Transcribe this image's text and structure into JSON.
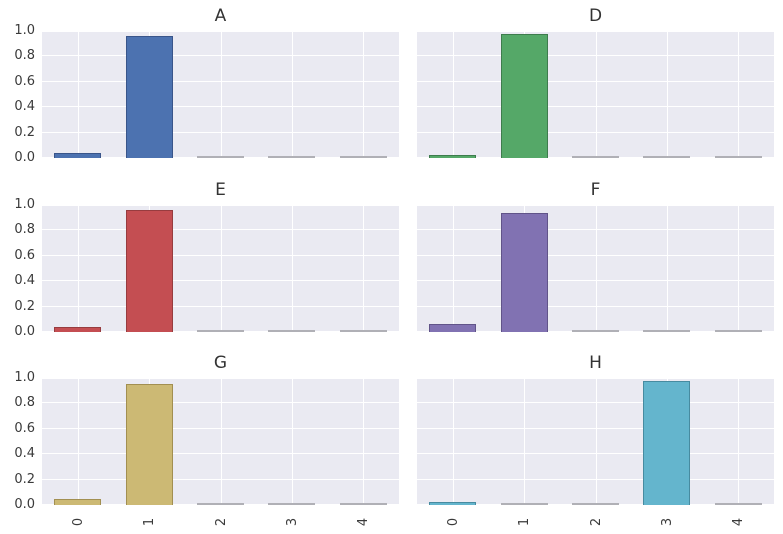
{
  "axes": {
    "ylim": [
      0.0,
      1.0
    ],
    "y_ticks": [
      "0.0",
      "0.2",
      "0.4",
      "0.6",
      "0.8",
      "1.0"
    ],
    "x_ticks": [
      "0",
      "1",
      "2",
      "3",
      "4"
    ],
    "x_tick_rotation_deg": 90,
    "grid": "on",
    "grid_color": "#ffffff",
    "plot_bg": "#eaeaf2",
    "figure_bg": "#ffffff",
    "text_color": "#333333",
    "near_zero_bar_color": "#b0b0b6"
  },
  "layout_hints": {
    "grid_rows": 3,
    "grid_cols": 2,
    "y_labels_on": "left-column-only",
    "x_labels_on": "bottom-row-only",
    "legend": "none"
  },
  "chart_data": [
    {
      "type": "bar",
      "title": "A",
      "categories": [
        "0",
        "1",
        "2",
        "3",
        "4"
      ],
      "values": [
        0.04,
        0.96,
        0.001,
        0.001,
        0.001
      ],
      "color": "#4c72b0",
      "edge_color": "#39558a",
      "xlabel": "",
      "ylabel": "",
      "ylim": [
        0.0,
        1.0
      ]
    },
    {
      "type": "bar",
      "title": "D",
      "categories": [
        "0",
        "1",
        "2",
        "3",
        "4"
      ],
      "values": [
        0.025,
        0.975,
        0.001,
        0.001,
        0.001
      ],
      "color": "#55a868",
      "edge_color": "#3e7c4d",
      "xlabel": "",
      "ylabel": "",
      "ylim": [
        0.0,
        1.0
      ]
    },
    {
      "type": "bar",
      "title": "E",
      "categories": [
        "0",
        "1",
        "2",
        "3",
        "4"
      ],
      "values": [
        0.04,
        0.96,
        0.001,
        0.001,
        0.001
      ],
      "color": "#c44e52",
      "edge_color": "#973c3f",
      "xlabel": "",
      "ylabel": "",
      "ylim": [
        0.0,
        1.0
      ]
    },
    {
      "type": "bar",
      "title": "F",
      "categories": [
        "0",
        "1",
        "2",
        "3",
        "4"
      ],
      "values": [
        0.06,
        0.94,
        0.001,
        0.001,
        0.001
      ],
      "color": "#8172b2",
      "edge_color": "#615489",
      "xlabel": "",
      "ylabel": "",
      "ylim": [
        0.0,
        1.0
      ]
    },
    {
      "type": "bar",
      "title": "G",
      "categories": [
        "0",
        "1",
        "2",
        "3",
        "4"
      ],
      "values": [
        0.05,
        0.95,
        0.001,
        0.001,
        0.001
      ],
      "color": "#ccb974",
      "edge_color": "#a28f51",
      "xlabel": "",
      "ylabel": "",
      "ylim": [
        0.0,
        1.0
      ]
    },
    {
      "type": "bar",
      "title": "H",
      "categories": [
        "0",
        "1",
        "2",
        "3",
        "4"
      ],
      "values": [
        0.025,
        0.001,
        0.001,
        0.975,
        0.001
      ],
      "color": "#64b5cd",
      "edge_color": "#478ba0",
      "xlabel": "",
      "ylabel": "",
      "ylim": [
        0.0,
        1.0
      ]
    }
  ]
}
